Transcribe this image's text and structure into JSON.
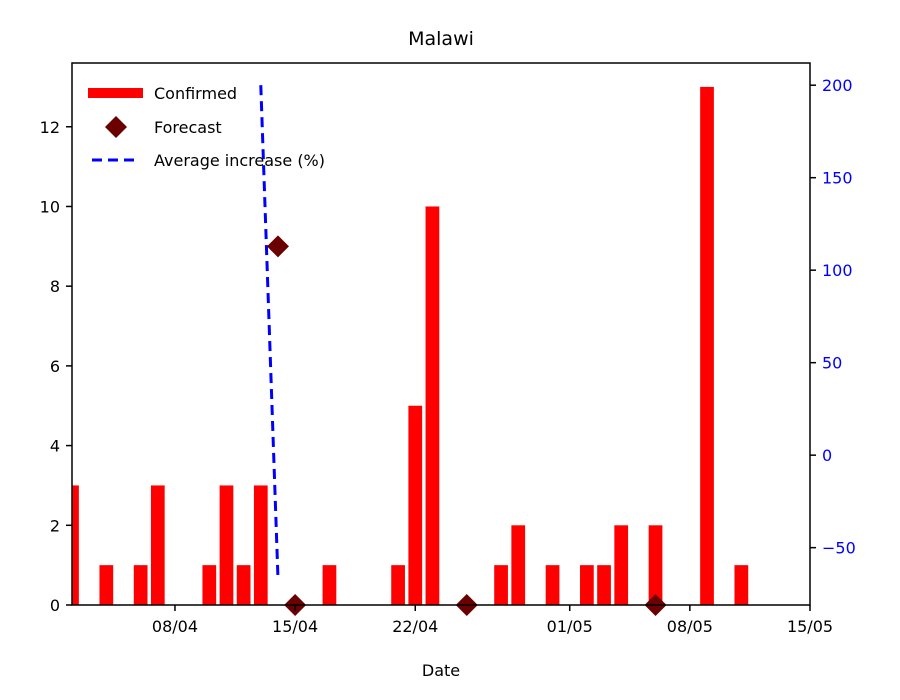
{
  "chart_data": {
    "type": "bar",
    "title": "Malawi",
    "xlabel": "Date",
    "ylabel": "",
    "x_ticks": [
      "08/04",
      "15/04",
      "22/04",
      "01/05",
      "08/05",
      "15/05"
    ],
    "x_tick_days": [
      8,
      15,
      22,
      31,
      38,
      45
    ],
    "xlim_days": [
      2,
      45
    ],
    "ylim": [
      0,
      13.6
    ],
    "y_ticks": [
      0,
      2,
      4,
      6,
      8,
      10,
      12
    ],
    "y2lim": [
      -81,
      212
    ],
    "y2_ticks": [
      -50,
      0,
      50,
      100,
      150,
      200
    ],
    "grid": false,
    "legend_position": "top-left",
    "colors": {
      "confirmed": "#ff0000",
      "forecast": "#6b0000",
      "average": "#0000ff"
    },
    "series": [
      {
        "name": "Confirmed",
        "kind": "bar",
        "axis": "left",
        "points": [
          {
            "x": "02/04",
            "y": 3
          },
          {
            "x": "04/04",
            "y": 1
          },
          {
            "x": "06/04",
            "y": 1
          },
          {
            "x": "07/04",
            "y": 3
          },
          {
            "x": "10/04",
            "y": 1
          },
          {
            "x": "11/04",
            "y": 3
          },
          {
            "x": "12/04",
            "y": 1
          },
          {
            "x": "13/04",
            "y": 3
          },
          {
            "x": "17/04",
            "y": 1
          },
          {
            "x": "21/04",
            "y": 1
          },
          {
            "x": "22/04",
            "y": 5
          },
          {
            "x": "23/04",
            "y": 10
          },
          {
            "x": "27/04",
            "y": 1
          },
          {
            "x": "28/04",
            "y": 2
          },
          {
            "x": "30/04",
            "y": 1
          },
          {
            "x": "02/05",
            "y": 1
          },
          {
            "x": "03/05",
            "y": 1
          },
          {
            "x": "04/05",
            "y": 2
          },
          {
            "x": "06/05",
            "y": 2
          },
          {
            "x": "09/05",
            "y": 13
          },
          {
            "x": "11/05",
            "y": 1
          }
        ]
      },
      {
        "name": "Forecast",
        "kind": "marker",
        "axis": "left",
        "points": [
          {
            "x": "14/04",
            "y": 9
          },
          {
            "x": "15/04",
            "y": 0
          },
          {
            "x": "25/04",
            "y": 0
          },
          {
            "x": "06/05",
            "y": 0
          }
        ]
      },
      {
        "name": "Average increase (%)",
        "kind": "line",
        "axis": "right",
        "points": [
          {
            "x": "13/04",
            "y": 200
          },
          {
            "x": "14/04",
            "y": -66
          }
        ]
      }
    ]
  }
}
